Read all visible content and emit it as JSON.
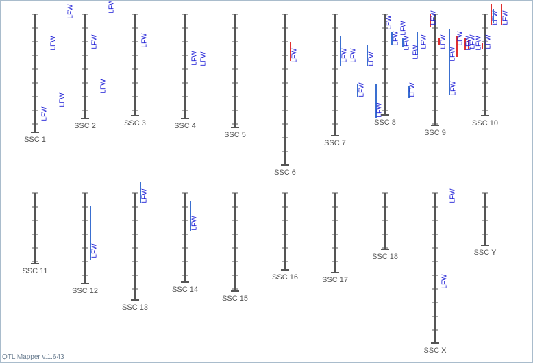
{
  "chromosomes": [
    {
      "label": "SSC 1",
      "qtls": [
        "LFW",
        "LFW",
        "LFW",
        "LFW"
      ]
    },
    {
      "label": "SSC 2",
      "qtls": [
        "LFW",
        "LFW",
        "LFW"
      ]
    },
    {
      "label": "SSC 3",
      "qtls": [
        "LFW"
      ]
    },
    {
      "label": "SSC 4",
      "qtls": [
        "LFW",
        "LFW"
      ]
    },
    {
      "label": "SSC 5",
      "qtls": []
    },
    {
      "label": "SSC 6",
      "qtls": [
        "LFW"
      ]
    },
    {
      "label": "SSC 7",
      "qtls": [
        "LFW",
        "LFW",
        "LFW",
        "LFW",
        "LFW"
      ]
    },
    {
      "label": "SSC 8",
      "qtls": [
        "LFW",
        "LFW",
        "LFW",
        "LFW",
        "LFW",
        "LFW",
        "LFW"
      ]
    },
    {
      "label": "SSC 9",
      "qtls": [
        "LFW",
        "LFW",
        "LFW",
        "LFW",
        "LFW",
        "LFW"
      ]
    },
    {
      "label": "SSC 10",
      "qtls": [
        "LFW",
        "LFW",
        "LFW",
        "LFW",
        "LFW"
      ]
    },
    {
      "label": "SSC 11",
      "qtls": []
    },
    {
      "label": "SSC 12",
      "qtls": [
        "LFW"
      ]
    },
    {
      "label": "SSC 13",
      "qtls": [
        "LFW"
      ]
    },
    {
      "label": "SSC 14",
      "qtls": [
        "LFW"
      ]
    },
    {
      "label": "SSC 15",
      "qtls": []
    },
    {
      "label": "SSC 16",
      "qtls": []
    },
    {
      "label": "SSC 17",
      "qtls": []
    },
    {
      "label": "SSC 18",
      "qtls": []
    },
    {
      "label": "SSC X",
      "qtls": [
        "LFW",
        "LFW"
      ]
    },
    {
      "label": "SSC Y",
      "qtls": []
    }
  ],
  "footer": "QTL Mapper v.1.643"
}
